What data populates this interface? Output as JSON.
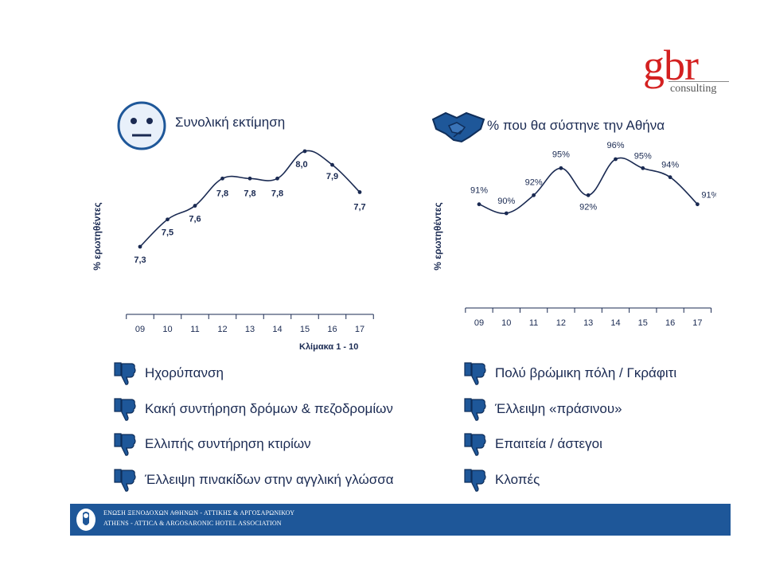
{
  "brand": {
    "logo_main": "gbr",
    "logo_sub": "consulting"
  },
  "colors": {
    "line": "#1a2a52",
    "marker": "#1a2a52",
    "icon_fill": "#1e5799",
    "footer_bg": "#1e5799",
    "logo_red": "#d42020"
  },
  "charts": {
    "left": {
      "title": "Συνολική εκτίμηση",
      "icon": "neutral-face-icon",
      "ylabel": "% ερωτηθέντες",
      "scale_note": "Κλίμακα  1 - 10"
    },
    "right": {
      "title": "%  που θα σύστηνε την Αθήνα",
      "icon": "handshake-icon",
      "ylabel": "% ερωτηθέντες"
    }
  },
  "chart_data": [
    {
      "type": "line",
      "title": "Συνολική εκτίμηση",
      "ylabel": "% ερωτηθέντες",
      "categories": [
        "09",
        "10",
        "11",
        "12",
        "13",
        "14",
        "15",
        "16",
        "17"
      ],
      "values": [
        7.3,
        7.5,
        7.6,
        7.8,
        7.8,
        7.8,
        8.0,
        7.9,
        7.7
      ],
      "labels": [
        "7,3",
        "7,5",
        "7,6",
        "7,8",
        "7,8",
        "7,8",
        "8,0",
        "7,9",
        "7,7"
      ],
      "note": "Κλίμακα  1 - 10",
      "grid": false
    },
    {
      "type": "line",
      "title": "%  που θα σύστηνε την Αθήνα",
      "ylabel": "% ερωτηθέντες",
      "categories": [
        "09",
        "10",
        "11",
        "12",
        "13",
        "14",
        "15",
        "16",
        "17"
      ],
      "values": [
        91,
        90,
        92,
        95,
        92,
        96,
        95,
        94,
        91
      ],
      "labels": [
        "91%",
        "90%",
        "92%",
        "95%",
        "92%",
        "96%",
        "95%",
        "94%",
        "91%"
      ],
      "grid": false
    }
  ],
  "issues_left": [
    {
      "icon": "thumbs-down-icon",
      "text": "Ηχορύπανση"
    },
    {
      "icon": "thumbs-down-icon",
      "text": "Κακή συντήρηση δρόμων & πεζοδρομίων"
    },
    {
      "icon": "thumbs-down-icon",
      "text": "Ελλιπής συντήρηση κτιρίων"
    },
    {
      "icon": "thumbs-down-icon",
      "text": "Έλλειψη πινακίδων στην αγγλική γλώσσα"
    }
  ],
  "issues_right": [
    {
      "icon": "thumbs-down-icon",
      "text": "Πολύ βρώμικη  πόλη / Γκράφιτι"
    },
    {
      "icon": "thumbs-down-icon",
      "text": "Έλλειψη «πράσινου»"
    },
    {
      "icon": "thumbs-down-icon",
      "text": "Επαιτεία / άστεγοι"
    },
    {
      "icon": "thumbs-down-icon",
      "text": "Κλοπές"
    }
  ],
  "footer": {
    "line1": "ΕΝΩΣΗ ΞΕΝΟΔΟΧΩΝ ΑΘΗΝΩΝ - ΑΤΤΙΚΗΣ & ΑΡΓΟΣΑΡΩΝΙΚΟΥ",
    "line2": "ATHENS - ATTICA & ARGOSARONIC HOTEL ASSOCIATION"
  }
}
